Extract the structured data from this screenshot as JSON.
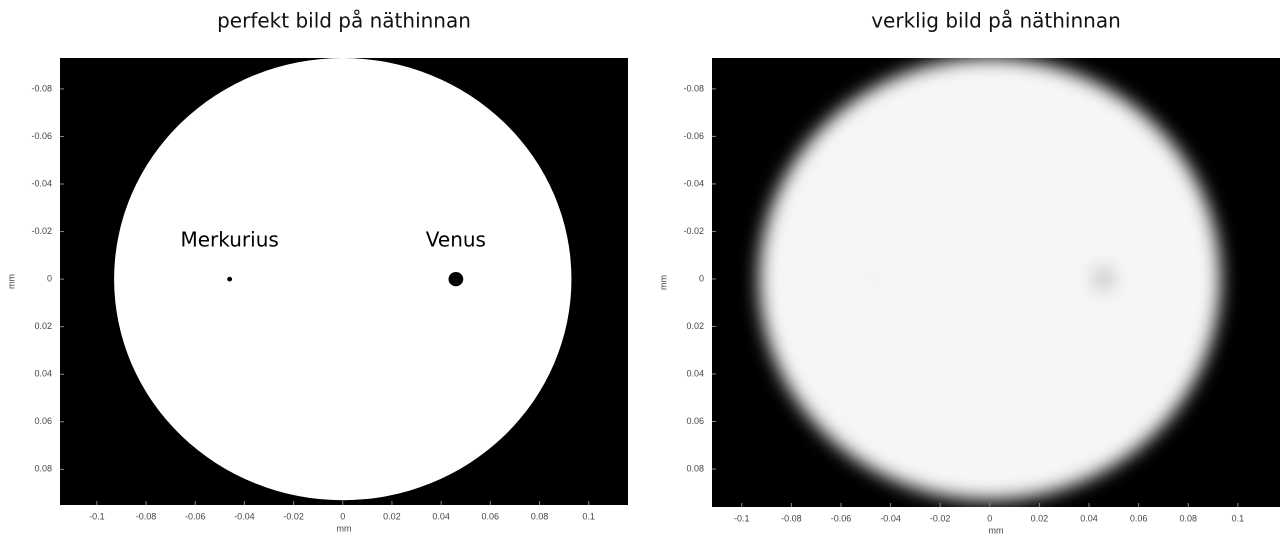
{
  "chart_data": [
    {
      "type": "image",
      "title": "perfekt bild på näthinnan",
      "xlabel": "mm",
      "ylabel": "mm",
      "xlim": [
        -0.115,
        0.116
      ],
      "ylim": [
        -0.093,
        0.095
      ],
      "y_reversed": true,
      "xticks": [
        -0.1,
        -0.08,
        -0.06,
        -0.04,
        -0.02,
        0,
        0.02,
        0.04,
        0.06,
        0.08,
        0.1
      ],
      "yticks": [
        -0.08,
        -0.06,
        -0.04,
        -0.02,
        0,
        0.02,
        0.04,
        0.06,
        0.08
      ],
      "background": "#000000",
      "blurred": false,
      "disk": {
        "x": 0,
        "y": 0,
        "radius": 0.093,
        "color": "#ffffff"
      },
      "spots": [
        {
          "label": "Merkurius",
          "x": -0.046,
          "y": 0,
          "radius": 0.001,
          "color": "#000000"
        },
        {
          "label": "Venus",
          "x": 0.046,
          "y": 0,
          "radius": 0.003,
          "color": "#000000"
        }
      ]
    },
    {
      "type": "image",
      "title": "verklig bild på näthinnan",
      "xlabel": "mm",
      "ylabel": "mm",
      "xlim": [
        -0.112,
        0.117
      ],
      "ylim": [
        -0.093,
        0.096
      ],
      "y_reversed": true,
      "xticks": [
        -0.1,
        -0.08,
        -0.06,
        -0.04,
        -0.02,
        0,
        0.02,
        0.04,
        0.06,
        0.08,
        0.1
      ],
      "yticks": [
        -0.08,
        -0.06,
        -0.04,
        -0.02,
        0,
        0.02,
        0.04,
        0.06,
        0.08
      ],
      "background": "#000000",
      "blurred": true,
      "disk": {
        "x": 0,
        "y": 0,
        "radius": 0.093,
        "color": "#f6f6f6"
      },
      "spots": [
        {
          "x": -0.046,
          "y": 0,
          "radius": 0.002,
          "color": "#c8c8c8"
        },
        {
          "x": 0.046,
          "y": 0,
          "radius": 0.003,
          "color": "#111111"
        }
      ]
    }
  ]
}
